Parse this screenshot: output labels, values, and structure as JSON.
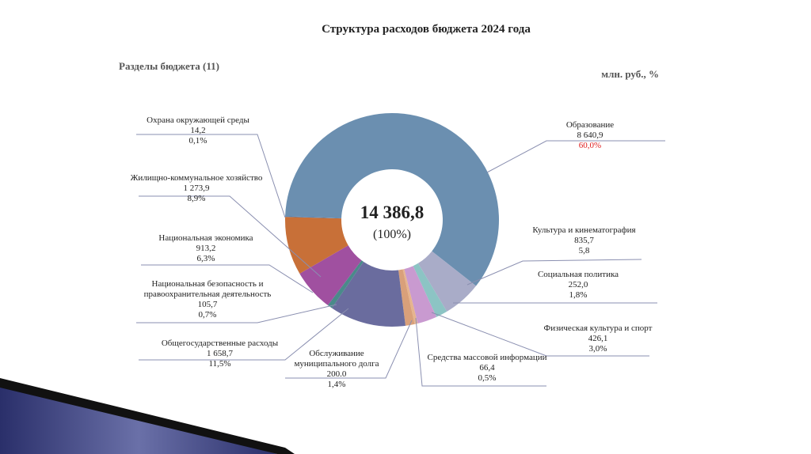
{
  "chart_data": {
    "type": "pie",
    "title": "Структура расходов бюджета 2024 года",
    "subtitle": "Разделы бюджета (11)",
    "units": "млн. руб., %",
    "center": {
      "value": 14386.8,
      "label": "14 386,8"
    },
    "center_share": {
      "value": 100,
      "label": "(100%)"
    },
    "categories": [
      "Образование",
      "Культура и кинематография",
      "Социальная политика",
      "Физическая культура и спорт",
      "Средства массовой информации",
      "Обслуживание муниципального долга",
      "Общегосударственные расходы",
      "Национальная безопасность и правоохранительная деятельность",
      "Национальная экономика",
      "Жилищно-коммунальное хозяйство",
      "Охрана окружающей среды"
    ],
    "values": [
      8640.9,
      835.7,
      252.0,
      426.1,
      66.4,
      200.0,
      1658.7,
      105.7,
      913.2,
      1273.9,
      14.2
    ],
    "value_labels": [
      "8 640,9",
      "835,7",
      "252,0",
      "426,1",
      "66,4",
      "200.0",
      "1 658,7",
      "105,7",
      "913,2",
      "1 273,9",
      "14,2"
    ],
    "percents": [
      60.0,
      5.8,
      1.8,
      3.0,
      0.5,
      1.4,
      11.5,
      0.7,
      6.3,
      8.9,
      0.1
    ],
    "percent_labels": [
      "60,0%",
      "5,8",
      "1,8%",
      "3,0%",
      "0,5%",
      "1,4%",
      "11,5%",
      "0,7%",
      "6,3%",
      "8,9%",
      "0,1%"
    ],
    "colors": [
      "#6b8fb0",
      "#a9acc8",
      "#8cc4c4",
      "#c99ad0",
      "#e6b48e",
      "#d9a07a",
      "#6a6c9e",
      "#4a8a8a",
      "#a050a0",
      "#c87038",
      "#4a7ab0"
    ],
    "highlight_color": "#e02020"
  }
}
